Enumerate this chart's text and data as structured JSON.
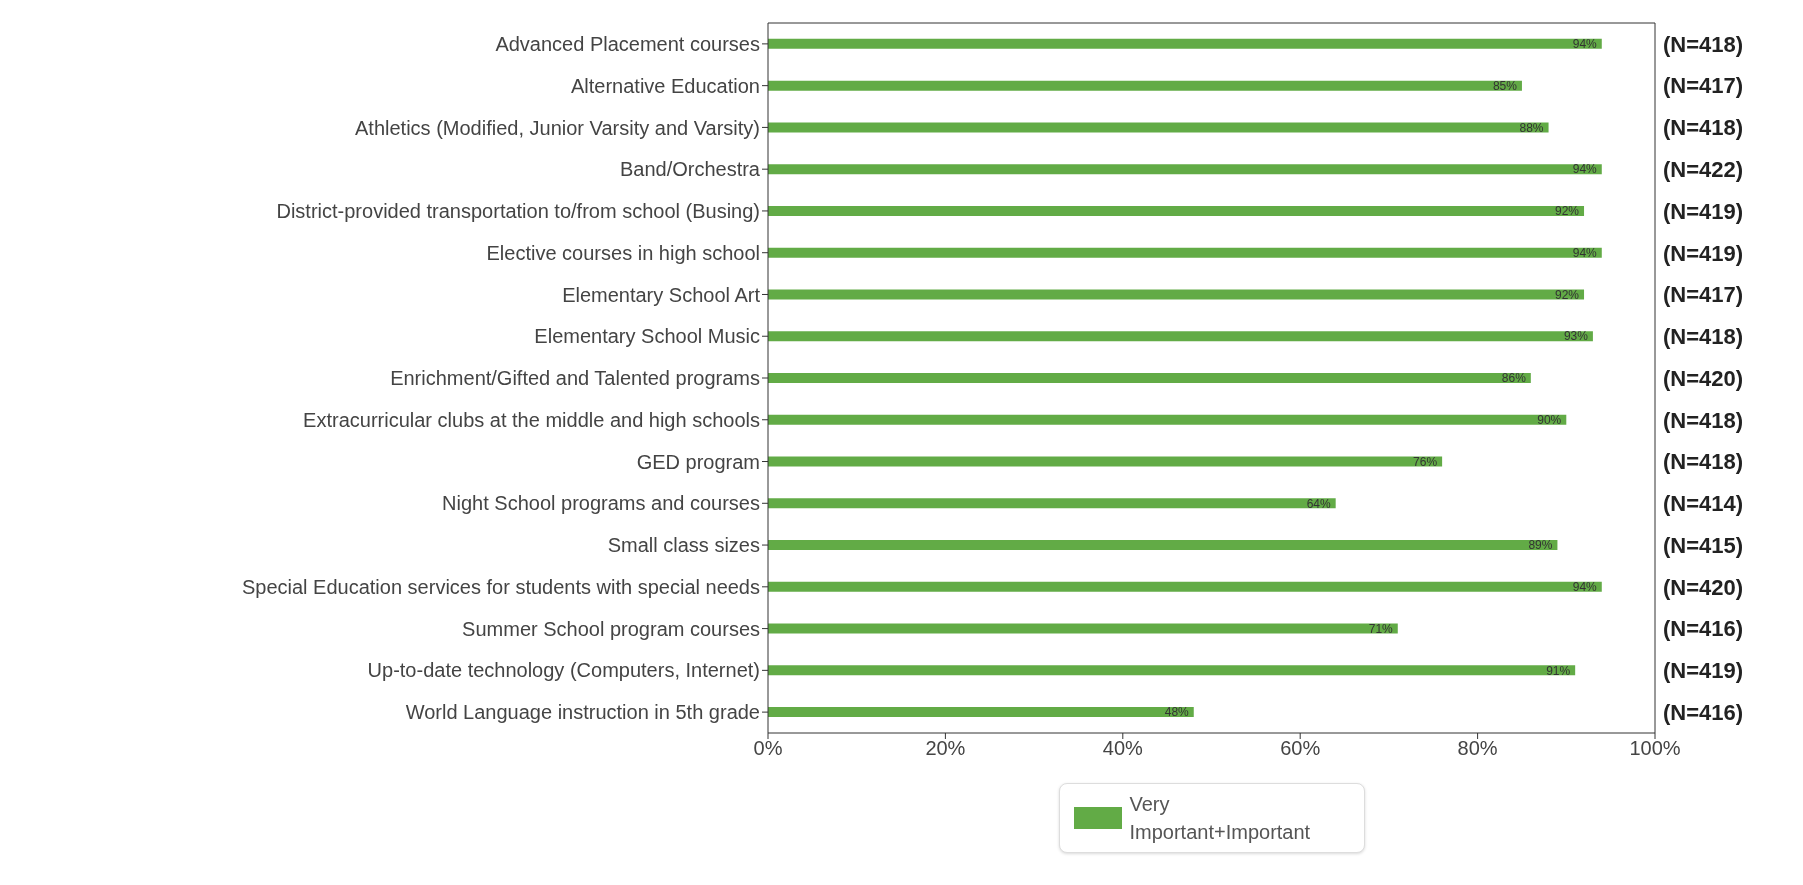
{
  "chart_data": {
    "type": "bar",
    "orientation": "horizontal",
    "categories": [
      "Advanced Placement courses",
      "Alternative Education",
      "Athletics (Modified, Junior Varsity and Varsity)",
      "Band/Orchestra",
      "District-provided transportation to/from school (Busing)",
      "Elective courses in high school",
      "Elementary School Art",
      "Elementary School Music",
      "Enrichment/Gifted and Talented programs",
      "Extracurricular clubs at the middle and high schools",
      "GED program",
      "Night School programs and courses",
      "Small class sizes",
      "Special Education services for students with special needs",
      "Summer School program courses",
      "Up-to-date technology (Computers, Internet)",
      "World Language instruction in 5th grade"
    ],
    "y2_categories": [
      "(N=418)",
      "(N=417)",
      "(N=418)",
      "(N=422)",
      "(N=419)",
      "(N=419)",
      "(N=417)",
      "(N=418)",
      "(N=420)",
      "(N=418)",
      "(N=418)",
      "(N=414)",
      "(N=415)",
      "(N=420)",
      "(N=416)",
      "(N=419)",
      "(N=416)"
    ],
    "series": [
      {
        "name": "Very Important+Important",
        "color": "#62ab46",
        "values": [
          94,
          85,
          88,
          94,
          92,
          94,
          92,
          93,
          86,
          90,
          76,
          64,
          89,
          94,
          71,
          91,
          48
        ],
        "value_labels": [
          "94%",
          "85%",
          "88%",
          "94%",
          "92%",
          "94%",
          "92%",
          "93%",
          "86%",
          "90%",
          "76%",
          "64%",
          "89%",
          "94%",
          "71%",
          "91%",
          "48%"
        ]
      }
    ],
    "xlim": [
      0,
      100
    ],
    "xticks": [
      {
        "value": 0,
        "label": "0%"
      },
      {
        "value": 20,
        "label": "20%"
      },
      {
        "value": 40,
        "label": "40%"
      },
      {
        "value": 60,
        "label": "60%"
      },
      {
        "value": 80,
        "label": "80%"
      },
      {
        "value": 100,
        "label": "100%"
      }
    ],
    "legend": "bottom"
  }
}
